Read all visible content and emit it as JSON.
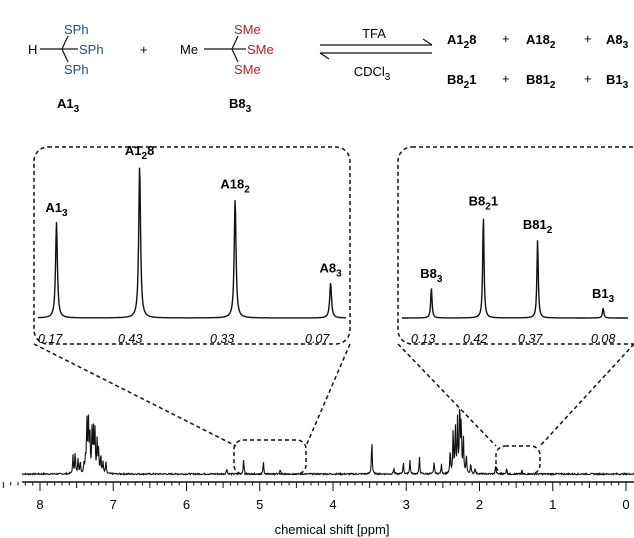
{
  "scheme": {
    "reactant1": {
      "label": "A1",
      "label_sub": "3",
      "atom_h": "H",
      "groups": [
        "SPh",
        "SPh",
        "SPh"
      ],
      "color": "#1f4e79"
    },
    "plus": "+",
    "reactant2": {
      "label": "B8",
      "label_sub": "3",
      "atom_me": "Me",
      "groups": [
        "SMe",
        "SMe",
        "SMe"
      ],
      "color": "#c0182a"
    },
    "reagent_above": "TFA",
    "reagent_below": {
      "text": "CDCl",
      "sub": "3"
    },
    "products_row1": [
      {
        "base": "A1",
        "sub": "2",
        "tail": "8"
      },
      {
        "base": "A18",
        "sub": "2",
        "tail": ""
      },
      {
        "base": "A8",
        "sub": "3",
        "tail": ""
      }
    ],
    "products_row2": [
      {
        "base": "B8",
        "sub": "2",
        "tail": "1"
      },
      {
        "base": "B81",
        "sub": "2",
        "tail": ""
      },
      {
        "base": "B1",
        "sub": "3",
        "tail": ""
      }
    ]
  },
  "chart_data": {
    "type": "line",
    "xlabel": "chemical shift [ppm]",
    "xlim": [
      8.6,
      0
    ],
    "xticks": [
      8,
      7,
      6,
      5,
      4,
      3,
      2,
      1,
      0
    ],
    "x_reversed": true,
    "main_spectrum_peaks": [
      {
        "x": 7.55,
        "h": 0.15
      },
      {
        "x": 7.52,
        "h": 0.18
      },
      {
        "x": 7.48,
        "h": 0.13
      },
      {
        "x": 7.45,
        "h": 0.1
      },
      {
        "x": 7.4,
        "h": 0.08
      },
      {
        "x": 7.38,
        "h": 0.12
      },
      {
        "x": 7.36,
        "h": 0.45
      },
      {
        "x": 7.34,
        "h": 0.47
      },
      {
        "x": 7.32,
        "h": 0.36
      },
      {
        "x": 7.29,
        "h": 0.35
      },
      {
        "x": 7.27,
        "h": 0.34
      },
      {
        "x": 7.25,
        "h": 0.36
      },
      {
        "x": 7.22,
        "h": 0.3
      },
      {
        "x": 7.2,
        "h": 0.2
      },
      {
        "x": 7.17,
        "h": 0.16
      },
      {
        "x": 7.14,
        "h": 0.1
      },
      {
        "x": 7.1,
        "h": 0.1
      },
      {
        "x": 5.45,
        "h": 0.05
      },
      {
        "x": 5.22,
        "h": 0.13
      },
      {
        "x": 4.95,
        "h": 0.1
      },
      {
        "x": 4.72,
        "h": 0.04
      },
      {
        "x": 3.47,
        "h": 0.29
      },
      {
        "x": 3.17,
        "h": 0.05
      },
      {
        "x": 3.04,
        "h": 0.1
      },
      {
        "x": 2.95,
        "h": 0.12
      },
      {
        "x": 2.82,
        "h": 0.14
      },
      {
        "x": 2.62,
        "h": 0.1
      },
      {
        "x": 2.52,
        "h": 0.08
      },
      {
        "x": 2.4,
        "h": 0.2
      },
      {
        "x": 2.36,
        "h": 0.36
      },
      {
        "x": 2.33,
        "h": 0.42
      },
      {
        "x": 2.3,
        "h": 0.45
      },
      {
        "x": 2.27,
        "h": 0.6
      },
      {
        "x": 2.25,
        "h": 0.44
      },
      {
        "x": 2.22,
        "h": 0.3
      },
      {
        "x": 2.18,
        "h": 0.16
      },
      {
        "x": 2.12,
        "h": 0.09
      },
      {
        "x": 2.06,
        "h": 0.05
      },
      {
        "x": 1.78,
        "h": 0.07
      },
      {
        "x": 1.63,
        "h": 0.05
      },
      {
        "x": 1.42,
        "h": 0.03
      }
    ],
    "inset_left": {
      "source_range_ppm": [
        5.55,
        4.55
      ],
      "peaks": [
        {
          "label": "A1",
          "sub": "3",
          "pos": 0.06,
          "h": 0.57
        },
        {
          "label": "A1",
          "sub": "2",
          "tail": "8",
          "pos": 0.33,
          "h": 0.91
        },
        {
          "label": "A18",
          "sub": "2",
          "tail": "",
          "pos": 0.64,
          "h": 0.71
        },
        {
          "label": "A8",
          "sub": "3",
          "tail": "",
          "pos": 0.95,
          "h": 0.21
        }
      ],
      "fractions": [
        "0.17",
        "0.43",
        "0.33",
        "0.07"
      ]
    },
    "inset_right": {
      "source_range_ppm": [
        2.0,
        1.25
      ],
      "peaks": [
        {
          "label": "B8",
          "sub": "3",
          "pos": 0.13,
          "h": 0.18
        },
        {
          "label": "B8",
          "sub": "2",
          "tail": "1",
          "pos": 0.36,
          "h": 0.61
        },
        {
          "label": "B81",
          "sub": "2",
          "tail": "",
          "pos": 0.6,
          "h": 0.47
        },
        {
          "label": "B1",
          "sub": "3",
          "tail": "",
          "pos": 0.89,
          "h": 0.06
        }
      ],
      "fractions": [
        "0.13",
        "0.42",
        "0.37",
        "0.08"
      ]
    }
  }
}
